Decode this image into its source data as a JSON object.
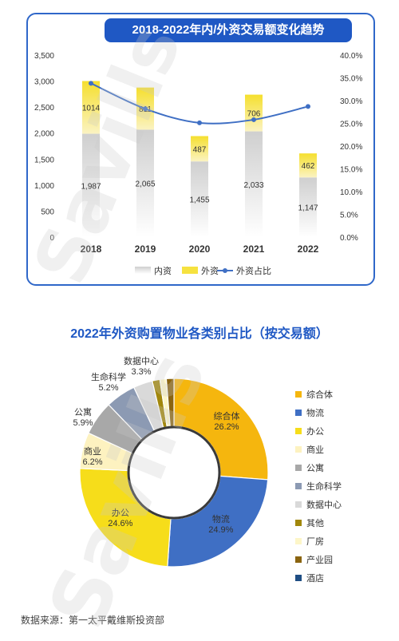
{
  "chart_data": [
    {
      "type": "bar",
      "title": "2018-2022年内/外资交易额变化趋势",
      "categories": [
        "2018",
        "2019",
        "2020",
        "2021",
        "2022"
      ],
      "series": [
        {
          "name": "内资",
          "type": "stacked-bar",
          "values": [
            1987,
            2065,
            1455,
            2033,
            1147
          ],
          "labels": [
            "1,987",
            "2,065",
            "1,455",
            "2,033",
            "1,147"
          ],
          "color": "#d8d8d8"
        },
        {
          "name": "外资",
          "type": "stacked-bar",
          "values": [
            1014,
            811,
            487,
            706,
            462
          ],
          "labels": [
            "1014",
            "811",
            "487",
            "706",
            "462"
          ],
          "color": "#f6e23f"
        },
        {
          "name": "外资占比",
          "type": "line",
          "axis": "right",
          "values": [
            33.8,
            28.2,
            25.1,
            25.8,
            28.7
          ],
          "color": "#3f6fc4"
        }
      ],
      "ylim": [
        0,
        3500
      ],
      "y_ticks": [
        "0",
        "500",
        "1,000",
        "1,500",
        "2,000",
        "2,500",
        "3,000",
        "3,500"
      ],
      "y2lim": [
        0,
        40
      ],
      "y2_ticks": [
        "0.0%",
        "5.0%",
        "10.0%",
        "15.0%",
        "20.0%",
        "25.0%",
        "30.0%",
        "35.0%",
        "40.0%"
      ],
      "legend": [
        "内资",
        "外资",
        "外资占比"
      ],
      "legend_position": "bottom",
      "grid": false
    },
    {
      "type": "pie",
      "title": "2022年外资购置物业各类别占比（按交易额）",
      "donut": true,
      "slices": [
        {
          "name": "综合体",
          "value": 26.2,
          "label": "26.2%",
          "color": "#f5b60e",
          "labeled": true
        },
        {
          "name": "物流",
          "value": 24.9,
          "label": "24.9%",
          "color": "#3f6fc4",
          "labeled": true
        },
        {
          "name": "办公",
          "value": 24.6,
          "label": "24.6%",
          "color": "#f6dd1a",
          "labeled": true
        },
        {
          "name": "商业",
          "value": 6.2,
          "label": "6.2%",
          "color": "#fdf2c0",
          "labeled": true
        },
        {
          "name": "公寓",
          "value": 5.9,
          "label": "5.9%",
          "color": "#a8a8a8",
          "labeled": true
        },
        {
          "name": "生命科学",
          "value": 5.2,
          "label": "5.2%",
          "color": "#8c9ab3",
          "labeled": true
        },
        {
          "name": "数据中心",
          "value": 3.3,
          "label": "3.3%",
          "color": "#d9d9d9",
          "labeled": true
        },
        {
          "name": "其他",
          "value": 1.3,
          "label": "",
          "color": "#a1870c",
          "labeled": false
        },
        {
          "name": "厂房",
          "value": 1.1,
          "label": "",
          "color": "#fdf6c8",
          "labeled": false
        },
        {
          "name": "产业园",
          "value": 1.3,
          "label": "",
          "color": "#8a6410",
          "labeled": false
        },
        {
          "name": "酒店",
          "value": 0,
          "label": "",
          "color": "#1f4e84",
          "labeled": false
        }
      ],
      "legend_position": "right"
    }
  ],
  "footer": {
    "source": "数据来源：第一太平戴维斯投资部"
  },
  "watermark": {
    "text": "Savills"
  }
}
